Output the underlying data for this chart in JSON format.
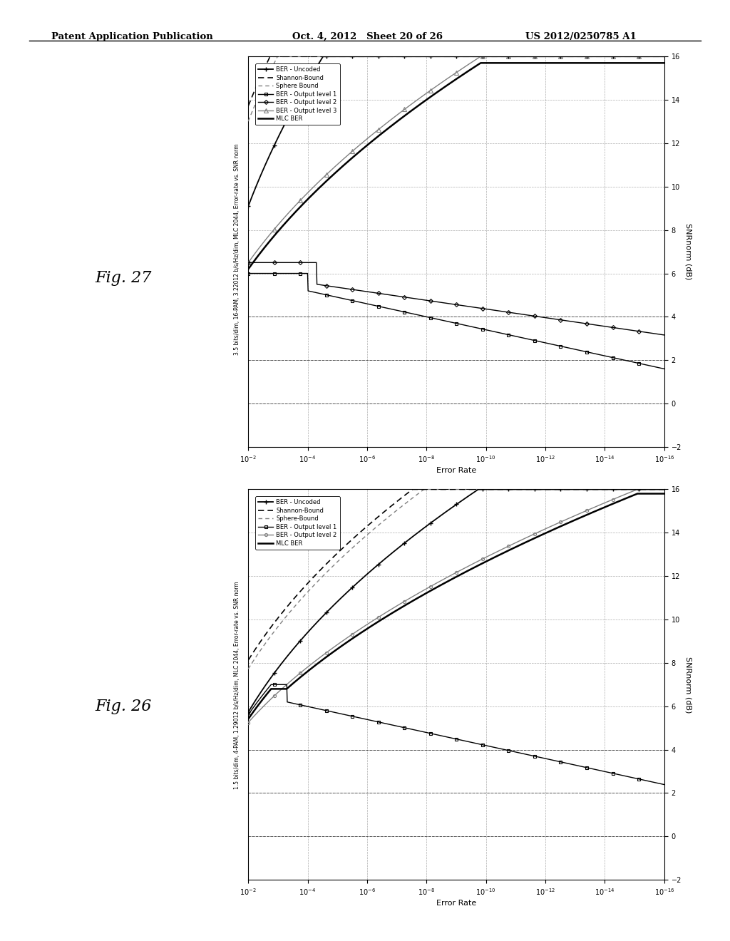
{
  "header_left": "Patent Application Publication",
  "header_center": "Oct. 4, 2012   Sheet 20 of 26",
  "header_right": "US 2012/0250785 A1",
  "fig27": {
    "title": "3.5 bits/dim, 16-PAM, 3.22012 b/s/Hz/dim, MLC 2044, Error-rate vs. SNR norm",
    "fig_label": "Fig. 27",
    "xlabel": "Error Rate",
    "ylabel": "SNRnorm (dB)",
    "legend27": [
      "BER - Uncoded",
      "Shannon-Bound",
      "Sphere Bound",
      "BER - Output level 1",
      "BER - Output level 2",
      "BER - Output level 3",
      "MLC BER"
    ]
  },
  "fig26": {
    "title": "1.5 bits/dim, 4-PAM, 1.29012 b/s/Hz/dim, MLC 2044, Error-rate vs. SNR norm",
    "fig_label": "Fig. 26",
    "xlabel": "Error Rate",
    "ylabel": "SNRnorm (dB)",
    "legend26": [
      "BER - Uncoded",
      "Shannon-Bound",
      "Sphere-Bound",
      "BER - Output level 1",
      "BER - Output level 2",
      "MLC BER"
    ]
  },
  "background_color": "white"
}
